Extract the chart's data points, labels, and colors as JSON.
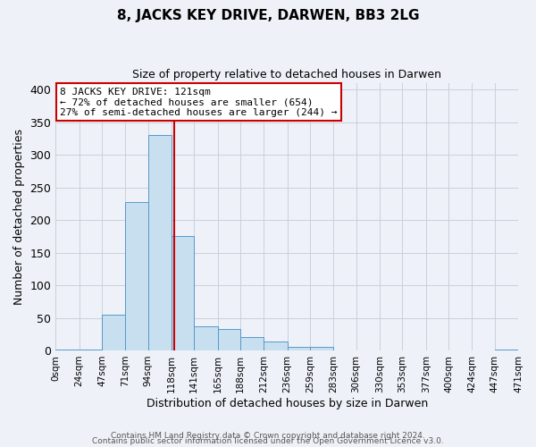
{
  "title": "8, JACKS KEY DRIVE, DARWEN, BB3 2LG",
  "subtitle": "Size of property relative to detached houses in Darwen",
  "xlabel": "Distribution of detached houses by size in Darwen",
  "ylabel": "Number of detached properties",
  "bar_edges": [
    0,
    24,
    47,
    71,
    94,
    118,
    141,
    165,
    188,
    212,
    236,
    259,
    283,
    306,
    330,
    353,
    377,
    400,
    424,
    447,
    471
  ],
  "bar_heights": [
    1,
    1,
    55,
    228,
    330,
    175,
    37,
    33,
    20,
    13,
    6,
    5,
    0,
    0,
    0,
    0,
    0,
    0,
    0,
    2
  ],
  "bar_color": "#c8dff0",
  "bar_edge_color": "#5599cc",
  "vline_x": 121,
  "vline_color": "#cc0000",
  "annotation_title": "8 JACKS KEY DRIVE: 121sqm",
  "annotation_line1": "← 72% of detached houses are smaller (654)",
  "annotation_line2": "27% of semi-detached houses are larger (244) →",
  "annotation_box_color": "white",
  "annotation_box_edge_color": "#cc0000",
  "xlim": [
    0,
    471
  ],
  "ylim": [
    0,
    410
  ],
  "yticks": [
    0,
    50,
    100,
    150,
    200,
    250,
    300,
    350,
    400
  ],
  "xtick_labels": [
    "0sqm",
    "24sqm",
    "47sqm",
    "71sqm",
    "94sqm",
    "118sqm",
    "141sqm",
    "165sqm",
    "188sqm",
    "212sqm",
    "236sqm",
    "259sqm",
    "283sqm",
    "306sqm",
    "330sqm",
    "353sqm",
    "377sqm",
    "400sqm",
    "424sqm",
    "447sqm",
    "471sqm"
  ],
  "xtick_positions": [
    0,
    24,
    47,
    71,
    94,
    118,
    141,
    165,
    188,
    212,
    236,
    259,
    283,
    306,
    330,
    353,
    377,
    400,
    424,
    447,
    471
  ],
  "grid_color": "#c8d0dc",
  "background_color": "#eef2f8",
  "footer1": "Contains HM Land Registry data © Crown copyright and database right 2024.",
  "footer2": "Contains public sector information licensed under the Open Government Licence v3.0."
}
